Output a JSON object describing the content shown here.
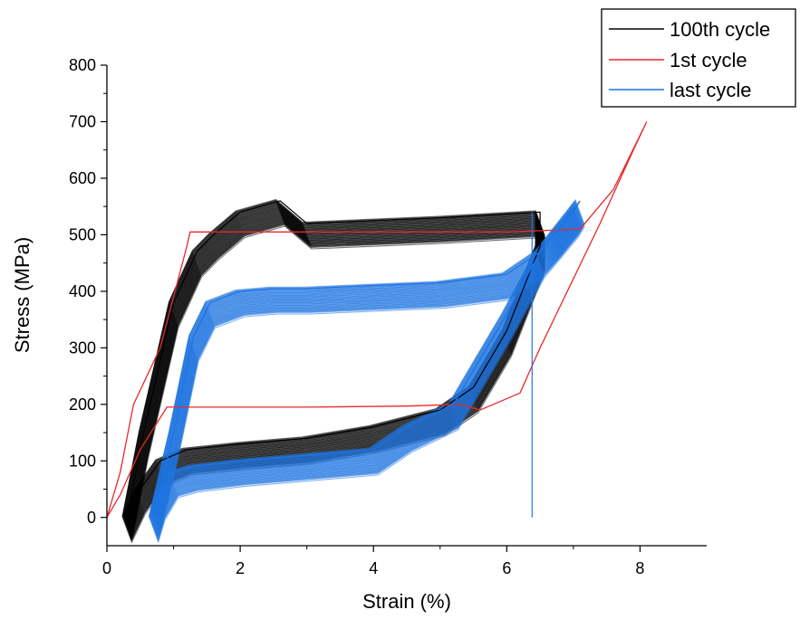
{
  "chart_data": {
    "type": "line",
    "title": "",
    "xlabel": "Strain (%)",
    "ylabel": "Stress (MPa)",
    "xlim": [
      0,
      9
    ],
    "ylim": [
      -50,
      800
    ],
    "xticks": [
      "0",
      "2",
      "4",
      "6",
      "8"
    ],
    "yticks": [
      "0",
      "100",
      "200",
      "300",
      "400",
      "500",
      "600",
      "700",
      "800"
    ],
    "grid": false,
    "legend_position": "top-right",
    "colors": {
      "100th cycle": "#000000",
      "1st cycle": "#e8282b",
      "last cycle": "#1f74e0"
    },
    "series": [
      {
        "name": "100th cycle",
        "color": "#000000",
        "x": [
          0.3,
          0.55,
          1.0,
          1.35,
          1.6,
          2.0,
          2.6,
          3.0,
          4.0,
          5.0,
          6.5,
          6.5,
          6.0,
          5.5,
          5.0,
          4.0,
          3.0,
          2.0,
          1.2,
          0.8,
          0.5,
          0.3
        ],
        "y": [
          0,
          150,
          380,
          470,
          500,
          540,
          560,
          520,
          525,
          530,
          540,
          480,
          330,
          230,
          190,
          160,
          140,
          130,
          120,
          100,
          50,
          0
        ]
      },
      {
        "name": "1st cycle",
        "color": "#e8282b",
        "x": [
          0,
          0.2,
          0.4,
          0.8,
          1.2,
          1.25,
          3.0,
          6.0,
          7.1,
          7.6,
          8.1,
          7.9,
          7.4,
          6.5,
          6.2,
          5.8,
          5.6,
          5.3,
          4.5,
          3.0,
          1.5,
          0.9,
          0.5,
          0.2,
          0.0
        ],
        "y": [
          0,
          80,
          200,
          300,
          480,
          505,
          505,
          505,
          510,
          580,
          700,
          650,
          520,
          300,
          220,
          200,
          190,
          200,
          197,
          195,
          195,
          195,
          120,
          40,
          0
        ]
      },
      {
        "name": "last cycle",
        "color": "#1f74e0",
        "x": [
          0.7,
          1.0,
          1.3,
          1.55,
          2.0,
          2.5,
          3.0,
          4.0,
          5.0,
          6.0,
          6.5,
          7.0,
          7.1,
          6.5,
          6.0,
          5.2,
          4.5,
          4.0,
          3.0,
          2.0,
          1.3,
          1.0,
          0.8,
          0.7
        ],
        "y": [
          0,
          150,
          320,
          380,
          400,
          405,
          405,
          410,
          415,
          430,
          470,
          540,
          560,
          470,
          360,
          200,
          160,
          120,
          110,
          100,
          90,
          80,
          40,
          0
        ]
      }
    ]
  }
}
